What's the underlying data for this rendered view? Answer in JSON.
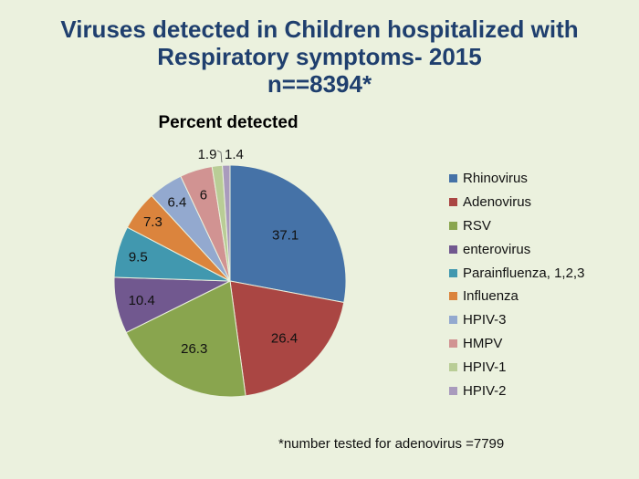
{
  "chart_data": {
    "type": "pie",
    "title_lines": [
      "Viruses detected in Children hospitalized with",
      "Respiratory symptoms- 2015",
      "n==8394*"
    ],
    "subtitle": "Percent detected",
    "categories": [
      "Rhinovirus",
      "Adenovirus",
      "RSV",
      "enterovirus",
      "Parainfluenza, 1,2,3",
      "Influenza",
      "HPIV-3",
      "HMPV",
      "HPIV-1",
      "HPIV-2"
    ],
    "values": [
      37.1,
      26.4,
      26.3,
      10.4,
      9.5,
      7.3,
      6.4,
      6,
      1.9,
      1.4
    ],
    "labels": [
      "37.1",
      "26.4",
      "26.3",
      "10.4",
      "9.5",
      "7.3",
      "6.4",
      "6",
      "1.9",
      "1.4"
    ],
    "colors": [
      "#4572a7",
      "#aa4643",
      "#89a54e",
      "#71588f",
      "#4198af",
      "#db843d",
      "#93a9cf",
      "#d19392",
      "#b9cd96",
      "#a99bbd"
    ],
    "legend_position": "right",
    "footnote": "*number tested for adenovirus =7799"
  }
}
